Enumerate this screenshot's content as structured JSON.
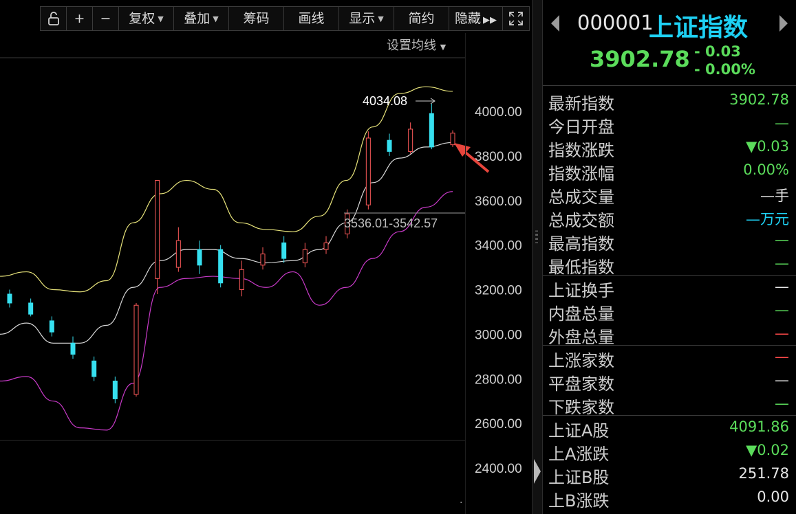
{
  "toolbar": {
    "lock_icon": "unlock-icon",
    "zoom_in": "+",
    "zoom_out": "−",
    "items": [
      {
        "label": "复权",
        "has_dropdown": true
      },
      {
        "label": "叠加",
        "has_dropdown": true
      },
      {
        "label": "筹码",
        "has_dropdown": false
      },
      {
        "label": "画线",
        "has_dropdown": false
      },
      {
        "label": "显示",
        "has_dropdown": true
      },
      {
        "label": "简约",
        "has_dropdown": false
      },
      {
        "label": "隐藏",
        "has_dropdown": false
      }
    ],
    "hide_suffix_icon": "double-chevron-right-icon",
    "fullscreen_icon": "fullscreen-icon"
  },
  "chart": {
    "setting_label": "设置均线",
    "high_annotation": "4034.08",
    "range_annotation": "3536.01-3542.57"
  },
  "chart_data": {
    "type": "candlestick",
    "y_ticks": [
      "4000.00",
      "3800.00",
      "3600.00",
      "3400.00",
      "3200.00",
      "3000.00",
      "2800.00",
      "2600.00",
      "2400.00"
    ],
    "ylim": [
      2400,
      4000
    ],
    "bollinger": {
      "upper_color": "#e6e27a",
      "middle_color": "#d9d9d9",
      "lower_color": "#c83ac8",
      "upper": [
        3260,
        3280,
        3200,
        3190,
        3240,
        3500,
        3630,
        3690,
        3650,
        3500,
        3470,
        3460,
        3530,
        3690,
        3930,
        4080,
        4110,
        4090
      ],
      "middle": [
        3000,
        3050,
        2960,
        2960,
        3040,
        3210,
        3330,
        3380,
        3380,
        3340,
        3320,
        3330,
        3380,
        3500,
        3680,
        3790,
        3840,
        3860
      ],
      "lower": [
        2790,
        2810,
        2700,
        2580,
        2570,
        2780,
        3210,
        3250,
        3260,
        3250,
        3210,
        3280,
        3130,
        3210,
        3340,
        3460,
        3570,
        3640
      ]
    },
    "candles": [
      {
        "o": 3180,
        "c": 3140,
        "h": 3200,
        "l": 3120
      },
      {
        "o": 3140,
        "c": 3090,
        "h": 3160,
        "l": 3080
      },
      {
        "o": 3060,
        "c": 3010,
        "h": 3080,
        "l": 2990
      },
      {
        "o": 2960,
        "c": 2910,
        "h": 2990,
        "l": 2890
      },
      {
        "o": 2880,
        "c": 2810,
        "h": 2900,
        "l": 2790
      },
      {
        "o": 2790,
        "c": 2710,
        "h": 2810,
        "l": 2690
      },
      {
        "o": 2730,
        "c": 3130,
        "h": 3140,
        "l": 2720
      },
      {
        "o": 3250,
        "c": 3690,
        "h": 3690,
        "l": 3180
      },
      {
        "o": 3300,
        "c": 3420,
        "h": 3480,
        "l": 3280
      },
      {
        "o": 3380,
        "c": 3310,
        "h": 3420,
        "l": 3270
      },
      {
        "o": 3380,
        "c": 3230,
        "h": 3400,
        "l": 3210
      },
      {
        "o": 3200,
        "c": 3290,
        "h": 3330,
        "l": 3170
      },
      {
        "o": 3310,
        "c": 3360,
        "h": 3390,
        "l": 3290
      },
      {
        "o": 3410,
        "c": 3340,
        "h": 3440,
        "l": 3320
      },
      {
        "o": 3320,
        "c": 3380,
        "h": 3410,
        "l": 3300
      },
      {
        "o": 3380,
        "c": 3410,
        "h": 3440,
        "l": 3360
      },
      {
        "o": 3450,
        "c": 3540,
        "h": 3560,
        "l": 3430
      },
      {
        "o": 3580,
        "c": 3880,
        "h": 3910,
        "l": 3560
      },
      {
        "o": 3870,
        "c": 3820,
        "h": 3900,
        "l": 3800
      },
      {
        "o": 3820,
        "c": 3920,
        "h": 3950,
        "l": 3810
      },
      {
        "o": 3990,
        "c": 3840,
        "h": 4034,
        "l": 3830
      },
      {
        "o": 3850,
        "c": 3902,
        "h": 3915,
        "l": 3840
      }
    ]
  },
  "panel": {
    "prev_icon": "triangle-left-icon",
    "next_icon": "triangle-right-icon",
    "code": "000001",
    "name": "上证指数",
    "price": "3902.78",
    "change": "- 0.03",
    "change_pct": "- 0.00%",
    "rows": [
      {
        "label": "最新指数",
        "value": "3902.78",
        "color": "#5bdc5b"
      },
      {
        "label": "今日开盘",
        "value": "—",
        "color": "#5bdc5b"
      },
      {
        "label": "指数涨跌",
        "value": "▼0.03",
        "color": "#5bdc5b"
      },
      {
        "label": "指数涨幅",
        "value": "0.00%",
        "color": "#5bdc5b"
      },
      {
        "label": "总成交量",
        "value": "—手",
        "color": "#e6e6e6"
      },
      {
        "label": "总成交额",
        "value": "—万元",
        "color": "#1ed1f4"
      },
      {
        "label": "最高指数",
        "value": "—",
        "color": "#5bdc5b"
      },
      {
        "label": "最低指数",
        "value": "—",
        "color": "#5bdc5b"
      },
      {
        "label": "上证换手",
        "value": "—",
        "color": "#e6e6e6"
      },
      {
        "label": "内盘总量",
        "value": "—",
        "color": "#5bdc5b"
      },
      {
        "label": "外盘总量",
        "value": "—",
        "color": "#ff4a4a"
      },
      {
        "label": "上涨家数",
        "value": "—",
        "color": "#ff4a4a"
      },
      {
        "label": "平盘家数",
        "value": "—",
        "color": "#e6e6e6"
      },
      {
        "label": "下跌家数",
        "value": "—",
        "color": "#5bdc5b"
      },
      {
        "label": "上证A股",
        "value": "4091.86",
        "color": "#5bdc5b"
      },
      {
        "label": "上A涨跌",
        "value": "▼0.02",
        "color": "#5bdc5b"
      },
      {
        "label": "上证B股",
        "value": "251.78",
        "color": "#e6e6e6"
      },
      {
        "label": "上B涨跌",
        "value": "0.00",
        "color": "#e6e6e6"
      }
    ]
  },
  "colors": {
    "up": "#ff5a5a",
    "down": "#36e0f0",
    "price_green": "#5bdc5b",
    "name_cyan": "#1ed1f4",
    "arrow_red": "#e8453c"
  }
}
